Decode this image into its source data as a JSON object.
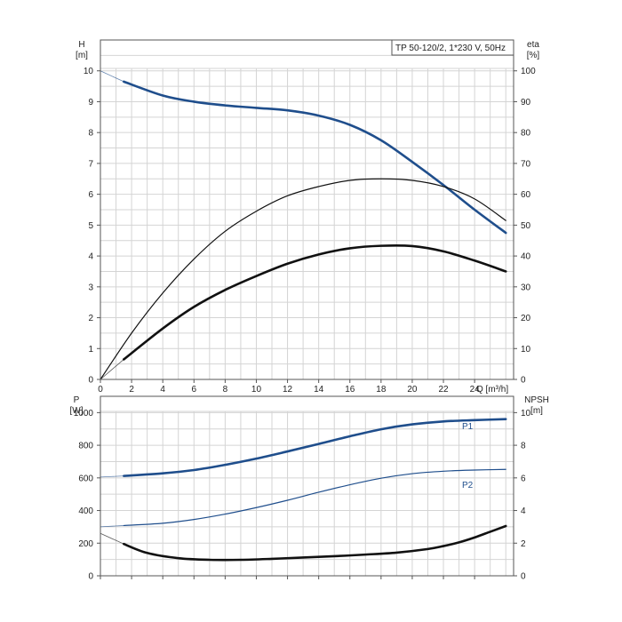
{
  "chart_data": [
    {
      "type": "line",
      "title": "TP 50-120/2, 1*230 V, 50Hz",
      "x_axis": {
        "label": "Q [m³/h]",
        "range": [
          0,
          26.5
        ],
        "ticks": [
          0,
          2,
          4,
          6,
          8,
          10,
          12,
          14,
          16,
          18,
          20,
          22,
          24
        ],
        "tick_labels": [
          "0",
          "2",
          "4",
          "6",
          "8",
          "10",
          "12",
          "14",
          "16",
          "18",
          "20",
          "22",
          "24"
        ]
      },
      "y_axis_left": {
        "label": "H",
        "unit": "[m]",
        "range": [
          0,
          11
        ],
        "ticks": [
          0,
          1,
          2,
          3,
          4,
          5,
          6,
          7,
          8,
          9,
          10
        ],
        "tick_labels": [
          "0",
          "1",
          "2",
          "3",
          "4",
          "5",
          "6",
          "7",
          "8",
          "9",
          "10"
        ]
      },
      "y_axis_right": {
        "label": "eta",
        "unit": "[%]",
        "range": [
          0,
          110
        ],
        "ticks": [
          0,
          10,
          20,
          30,
          40,
          50,
          60,
          70,
          80,
          90,
          100
        ],
        "tick_labels": [
          "0",
          "10",
          "20",
          "30",
          "40",
          "50",
          "60",
          "70",
          "80",
          "90",
          "100"
        ]
      },
      "grid": true,
      "series": [
        {
          "axis": "left",
          "color": "#1f4e8c",
          "style": "thick",
          "x": [
            1.5,
            4,
            6,
            8,
            10,
            12,
            14,
            16,
            18,
            20,
            22,
            24,
            26
          ],
          "y": [
            9.65,
            9.2,
            9.0,
            8.88,
            8.8,
            8.72,
            8.55,
            8.25,
            7.75,
            7.05,
            6.3,
            5.5,
            4.75
          ],
          "extension": {
            "x": [
              0,
              1.5
            ],
            "y": [
              10.0,
              9.65
            ]
          }
        },
        {
          "axis": "right",
          "color": "#111111",
          "style": "thin",
          "x": [
            0,
            2,
            4,
            6,
            8,
            10,
            12,
            14,
            16,
            18,
            20,
            22,
            24,
            26
          ],
          "y": [
            0,
            15,
            28,
            39,
            48,
            54.5,
            59.5,
            62.5,
            64.5,
            65,
            64.5,
            62.5,
            58.5,
            51.5
          ]
        },
        {
          "axis": "right",
          "color": "#111111",
          "style": "thick",
          "x": [
            1.5,
            4,
            6,
            8,
            10,
            12,
            14,
            16,
            18,
            20,
            22,
            24,
            26
          ],
          "y": [
            6.5,
            16.5,
            23.5,
            29,
            33.5,
            37.5,
            40.5,
            42.5,
            43.3,
            43.2,
            41.5,
            38.5,
            35
          ],
          "extension": {
            "x": [
              0,
              1.5
            ],
            "y": [
              0,
              6.5
            ]
          }
        }
      ]
    },
    {
      "type": "line",
      "x_axis": {
        "range": [
          0,
          26.5
        ]
      },
      "y_axis_left": {
        "label": "P",
        "unit": "[W]",
        "range": [
          0,
          1100
        ],
        "ticks": [
          0,
          200,
          400,
          600,
          800,
          1000
        ],
        "tick_labels": [
          "0",
          "200",
          "400",
          "600",
          "800",
          "1000"
        ]
      },
      "y_axis_right": {
        "label": "NPSH",
        "unit": "[m]",
        "range": [
          0,
          11
        ],
        "ticks": [
          0,
          2,
          4,
          6,
          8,
          10
        ],
        "tick_labels": [
          "0",
          "2",
          "4",
          "6",
          "8",
          "10"
        ]
      },
      "grid": true,
      "series": [
        {
          "name": "P1",
          "axis": "left",
          "color": "#1f4e8c",
          "style": "thick",
          "x": [
            1.5,
            4,
            6,
            8,
            10,
            12,
            14,
            16,
            18,
            20,
            22,
            24,
            26
          ],
          "y": [
            612,
            628,
            648,
            680,
            718,
            762,
            808,
            855,
            898,
            928,
            946,
            954,
            960
          ],
          "extension": {
            "x": [
              0,
              1.5
            ],
            "y": [
              605,
              612
            ]
          }
        },
        {
          "name": "P2",
          "axis": "left",
          "color": "#1f4e8c",
          "style": "thin",
          "x": [
            1.5,
            4,
            6,
            8,
            10,
            12,
            14,
            16,
            18,
            20,
            22,
            24,
            26
          ],
          "y": [
            308,
            322,
            345,
            378,
            418,
            463,
            512,
            558,
            598,
            626,
            641,
            648,
            652
          ],
          "extension": {
            "x": [
              0,
              1.5
            ],
            "y": [
              300,
              308
            ]
          }
        },
        {
          "axis": "right",
          "color": "#111111",
          "style": "thick",
          "x": [
            1.5,
            3,
            5,
            7,
            9,
            11,
            13,
            15,
            17,
            19,
            21,
            22,
            23,
            24,
            25,
            26
          ],
          "y": [
            1.95,
            1.4,
            1.08,
            0.98,
            0.98,
            1.04,
            1.12,
            1.2,
            1.3,
            1.42,
            1.64,
            1.82,
            2.05,
            2.35,
            2.7,
            3.05
          ],
          "extension": {
            "x": [
              0,
              1.5
            ],
            "y": [
              2.6,
              1.95
            ]
          }
        }
      ]
    }
  ]
}
